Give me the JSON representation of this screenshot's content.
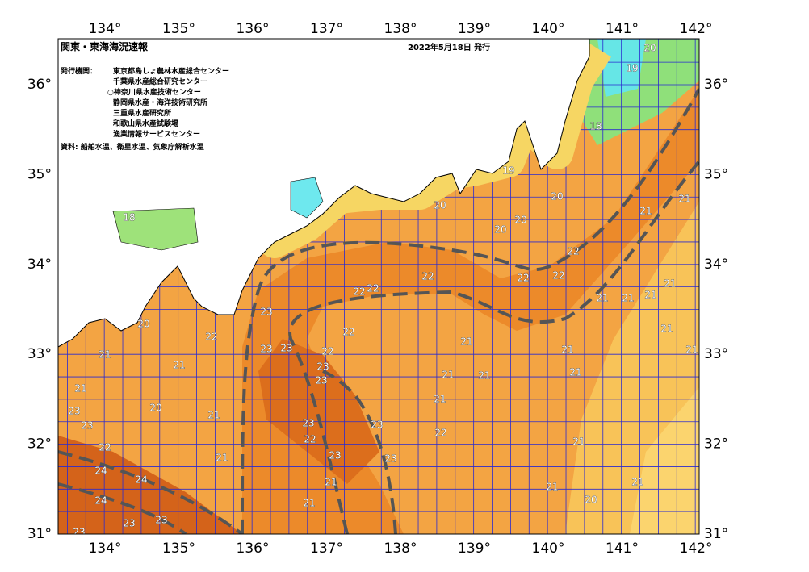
{
  "map": {
    "title": "関東・東海海況速報",
    "issue_date": "2022年5月18日 発行",
    "agencies_label": "発行機関：",
    "agencies": [
      "東京都島しょ農林水産総合センター",
      "千葉県水産総合研究センター",
      "○神奈川県水産技術センター",
      "静岡県水産・海洋技術研究所",
      "三重県水産研究所",
      "和歌山県水産試験場",
      "漁業情報サービスセンター"
    ],
    "source": "資料: 船舶水温、衛星水温、気象庁解析水温",
    "lon_labels": [
      "134°",
      "135°",
      "136°",
      "137°",
      "138°",
      "139°",
      "140°",
      "141°",
      "142°"
    ],
    "lat_labels": [
      "36°",
      "35°",
      "34°",
      "33°",
      "32°",
      "31°"
    ],
    "temperature_labels": [
      "23",
      "23",
      "23",
      "23",
      "23",
      "23",
      "23",
      "23",
      "23",
      "22",
      "22",
      "22",
      "22",
      "22",
      "22",
      "22",
      "22",
      "22",
      "22",
      "22",
      "21",
      "21",
      "21",
      "21",
      "21",
      "21",
      "21",
      "21",
      "21",
      "21",
      "21",
      "21",
      "21",
      "21",
      "21",
      "21",
      "21",
      "21",
      "21",
      "21",
      "21",
      "21",
      "21",
      "21",
      "20",
      "20",
      "20",
      "20",
      "20",
      "20",
      "20",
      "19",
      "18",
      "18",
      "19",
      "20",
      "24",
      "24",
      "24",
      "23",
      "23",
      "23",
      "23",
      "23",
      "22"
    ]
  }
}
